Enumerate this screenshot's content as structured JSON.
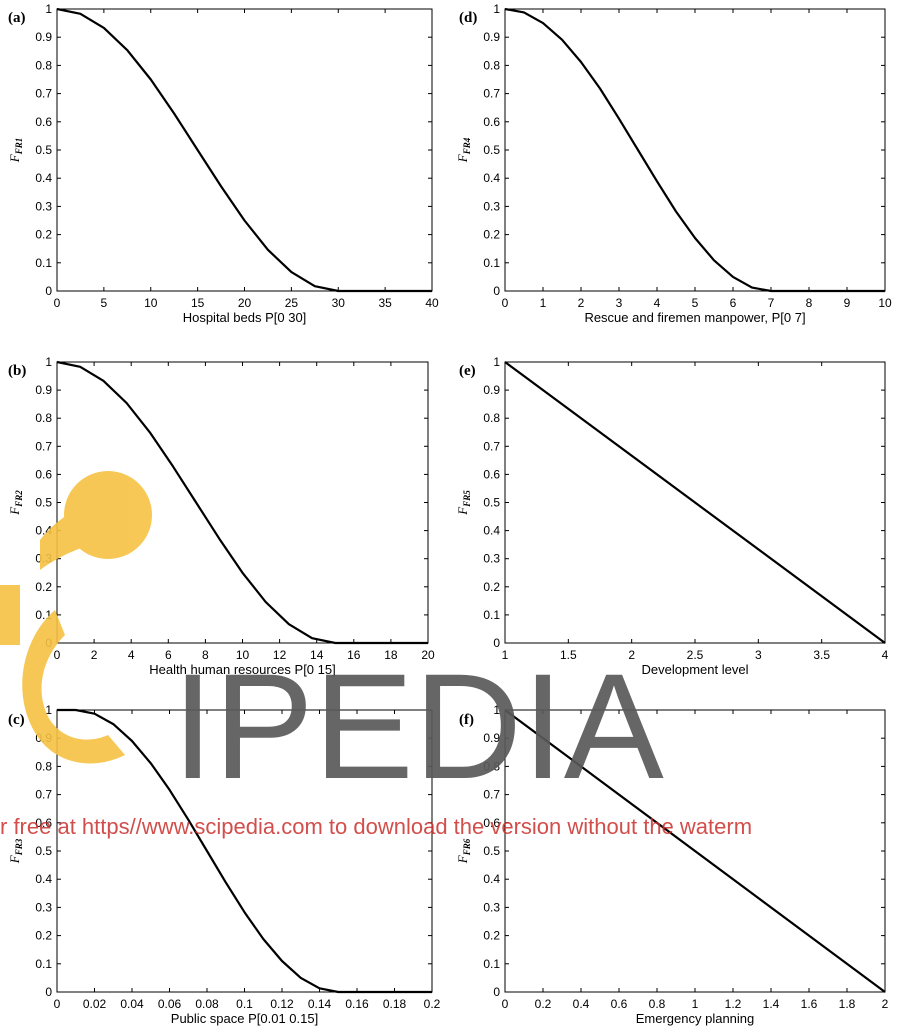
{
  "chart_data": [
    {
      "panel": "(a)",
      "type": "line",
      "xlabel": "Hospital beds   P[0 30]",
      "ylabel": "F",
      "ylabel_sub": "FR1",
      "xlim": [
        0,
        40
      ],
      "ylim": [
        0,
        1
      ],
      "xticks": [
        "0",
        "5",
        "10",
        "15",
        "20",
        "25",
        "30",
        "35",
        "40"
      ],
      "yticks": [
        "0",
        "0.1",
        "0.2",
        "0.3",
        "0.4",
        "0.5",
        "0.6",
        "0.7",
        "0.8",
        "0.9",
        "1"
      ],
      "series": [
        {
          "x": [
            0,
            2.5,
            5,
            7.5,
            10,
            12.5,
            15,
            17.5,
            20,
            22.5,
            25,
            27.5,
            30,
            35,
            40
          ],
          "y": [
            1,
            0.983,
            0.933,
            0.854,
            0.75,
            0.629,
            0.5,
            0.371,
            0.25,
            0.146,
            0.067,
            0.017,
            0,
            0,
            0
          ]
        }
      ]
    },
    {
      "panel": "(b)",
      "type": "line",
      "xlabel": "Health human resources   P[0 15]",
      "ylabel": "F",
      "ylabel_sub": "FR2",
      "xlim": [
        0,
        20
      ],
      "ylim": [
        0,
        1
      ],
      "xticks": [
        "0",
        "2",
        "4",
        "6",
        "8",
        "10",
        "12",
        "14",
        "16",
        "18",
        "20"
      ],
      "yticks": [
        "0",
        "0.1",
        "0.2",
        "0.3",
        "0.4",
        "0.5",
        "0.6",
        "0.7",
        "0.8",
        "0.9",
        "1"
      ],
      "series": [
        {
          "x": [
            0,
            1.25,
            2.5,
            3.75,
            5,
            6.25,
            7.5,
            8.75,
            10,
            11.25,
            12.5,
            13.75,
            15,
            17.5,
            20
          ],
          "y": [
            1,
            0.983,
            0.933,
            0.854,
            0.75,
            0.629,
            0.5,
            0.371,
            0.25,
            0.146,
            0.067,
            0.017,
            0,
            0,
            0
          ]
        }
      ]
    },
    {
      "panel": "(c)",
      "type": "line",
      "xlabel": "Public space  P[0.01 0.15]",
      "ylabel": "F",
      "ylabel_sub": "FR3",
      "xlim": [
        0,
        0.2
      ],
      "ylim": [
        0,
        1
      ],
      "xticks": [
        "0",
        "0.02",
        "0.04",
        "0.06",
        "0.08",
        "0.1",
        "0.12",
        "0.14",
        "0.16",
        "0.18",
        "0.2"
      ],
      "yticks": [
        "0",
        "0.1",
        "0.2",
        "0.3",
        "0.4",
        "0.5",
        "0.6",
        "0.7",
        "0.8",
        "0.9",
        "1"
      ],
      "series": [
        {
          "x": [
            0,
            0.01,
            0.02,
            0.03,
            0.04,
            0.05,
            0.06,
            0.07,
            0.08,
            0.09,
            0.1,
            0.11,
            0.12,
            0.13,
            0.14,
            0.15,
            0.175,
            0.2
          ],
          "y": [
            1,
            1,
            0.987,
            0.95,
            0.89,
            0.811,
            0.717,
            0.611,
            0.5,
            0.389,
            0.283,
            0.188,
            0.11,
            0.05,
            0.013,
            0,
            0,
            0
          ]
        }
      ]
    },
    {
      "panel": "(d)",
      "type": "line",
      "xlabel": "Rescue and firemen manpower, P[0 7]",
      "ylabel": "F",
      "ylabel_sub": "FR4",
      "xlim": [
        0,
        10
      ],
      "ylim": [
        0,
        1
      ],
      "xticks": [
        "0",
        "1",
        "2",
        "3",
        "4",
        "5",
        "6",
        "7",
        "8",
        "9",
        "10"
      ],
      "yticks": [
        "0",
        "0.1",
        "0.2",
        "0.3",
        "0.4",
        "0.5",
        "0.6",
        "0.7",
        "0.8",
        "0.9",
        "1"
      ],
      "series": [
        {
          "x": [
            0,
            0.5,
            1,
            1.5,
            2,
            2.5,
            3,
            3.5,
            4,
            4.5,
            5,
            5.5,
            6,
            6.5,
            7,
            8.5,
            10
          ],
          "y": [
            1,
            0.988,
            0.95,
            0.891,
            0.812,
            0.718,
            0.611,
            0.5,
            0.389,
            0.282,
            0.188,
            0.109,
            0.05,
            0.012,
            0,
            0,
            0
          ]
        }
      ]
    },
    {
      "panel": "(e)",
      "type": "line",
      "xlabel": "Development level",
      "ylabel": "F",
      "ylabel_sub": "FR5",
      "xlim": [
        1,
        4
      ],
      "ylim": [
        0,
        1
      ],
      "xticks": [
        "1",
        "1.5",
        "2",
        "2.5",
        "3",
        "3.5",
        "4"
      ],
      "yticks": [
        "0",
        "0.1",
        "0.2",
        "0.3",
        "0.4",
        "0.5",
        "0.6",
        "0.7",
        "0.8",
        "0.9",
        "1"
      ],
      "series": [
        {
          "x": [
            1,
            4
          ],
          "y": [
            1,
            0
          ]
        }
      ]
    },
    {
      "panel": "(f)",
      "type": "line",
      "xlabel": "Emergency planning",
      "ylabel": "F",
      "ylabel_sub": "FR6",
      "xlim": [
        0,
        2
      ],
      "ylim": [
        0,
        1
      ],
      "xticks": [
        "0",
        "0.2",
        "0.4",
        "0.6",
        "0.8",
        "1",
        "1.2",
        "1.4",
        "1.6",
        "1.8",
        "2"
      ],
      "yticks": [
        "0",
        "0.1",
        "0.2",
        "0.3",
        "0.4",
        "0.5",
        "0.6",
        "0.7",
        "0.8",
        "0.9",
        "1"
      ],
      "series": [
        {
          "x": [
            0,
            2
          ],
          "y": [
            1,
            0
          ]
        }
      ]
    }
  ],
  "watermark": {
    "brand": "IPEDIA",
    "notice": "r free at https//www.scipedia.com to download the version without the waterm",
    "logo_color": "#f6c242",
    "text_color": "#5a5a5a",
    "notice_color": "#c9302c"
  }
}
